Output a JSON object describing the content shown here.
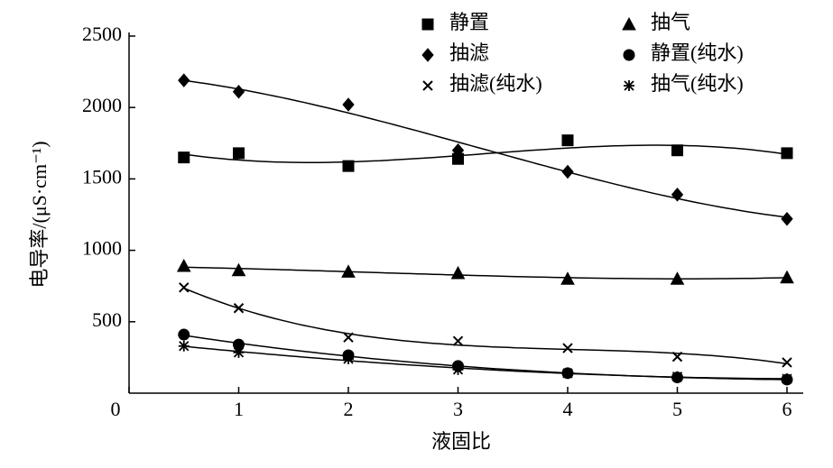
{
  "chart_data": {
    "type": "scatter",
    "x_label": "液固比",
    "y_label": "电导率/(μS·cm⁻¹)",
    "xlim": [
      0,
      6
    ],
    "xticks": [
      0,
      1,
      2,
      3,
      4,
      5,
      6
    ],
    "ylim": [
      0,
      2500
    ],
    "yticks": [
      500,
      1000,
      1500,
      2000,
      2500
    ],
    "trend": "cubic",
    "series": [
      {
        "name": "静置",
        "marker": "square",
        "color": "#000000",
        "x": [
          0.5,
          1,
          2,
          3,
          4,
          5,
          6
        ],
        "values": [
          1650,
          1680,
          1590,
          1640,
          1770,
          1700,
          1680
        ]
      },
      {
        "name": "抽气",
        "marker": "triangle",
        "color": "#000000",
        "x": [
          0.5,
          1,
          2,
          3,
          4,
          5,
          6
        ],
        "values": [
          890,
          860,
          850,
          840,
          800,
          800,
          810
        ]
      },
      {
        "name": "抽滤",
        "marker": "diamond",
        "color": "#000000",
        "x": [
          0.5,
          1,
          2,
          3,
          4,
          5,
          6
        ],
        "values": [
          2190,
          2110,
          2020,
          1700,
          1550,
          1390,
          1220
        ]
      },
      {
        "name": "静置(纯水)",
        "marker": "circle",
        "color": "#000000",
        "x": [
          0.5,
          1,
          2,
          3,
          4,
          5,
          6
        ],
        "values": [
          410,
          340,
          265,
          190,
          140,
          110,
          95
        ]
      },
      {
        "name": "抽滤(纯水)",
        "marker": "x",
        "color": "#000000",
        "x": [
          0.5,
          1,
          2,
          3,
          4,
          5,
          6
        ],
        "values": [
          740,
          595,
          390,
          365,
          315,
          255,
          215
        ]
      },
      {
        "name": "抽气(纯水)",
        "marker": "star",
        "color": "#000000",
        "x": [
          0.5,
          1,
          2,
          3,
          4,
          5,
          6
        ],
        "values": [
          330,
          285,
          240,
          165,
          140,
          115,
          100
        ]
      }
    ]
  }
}
